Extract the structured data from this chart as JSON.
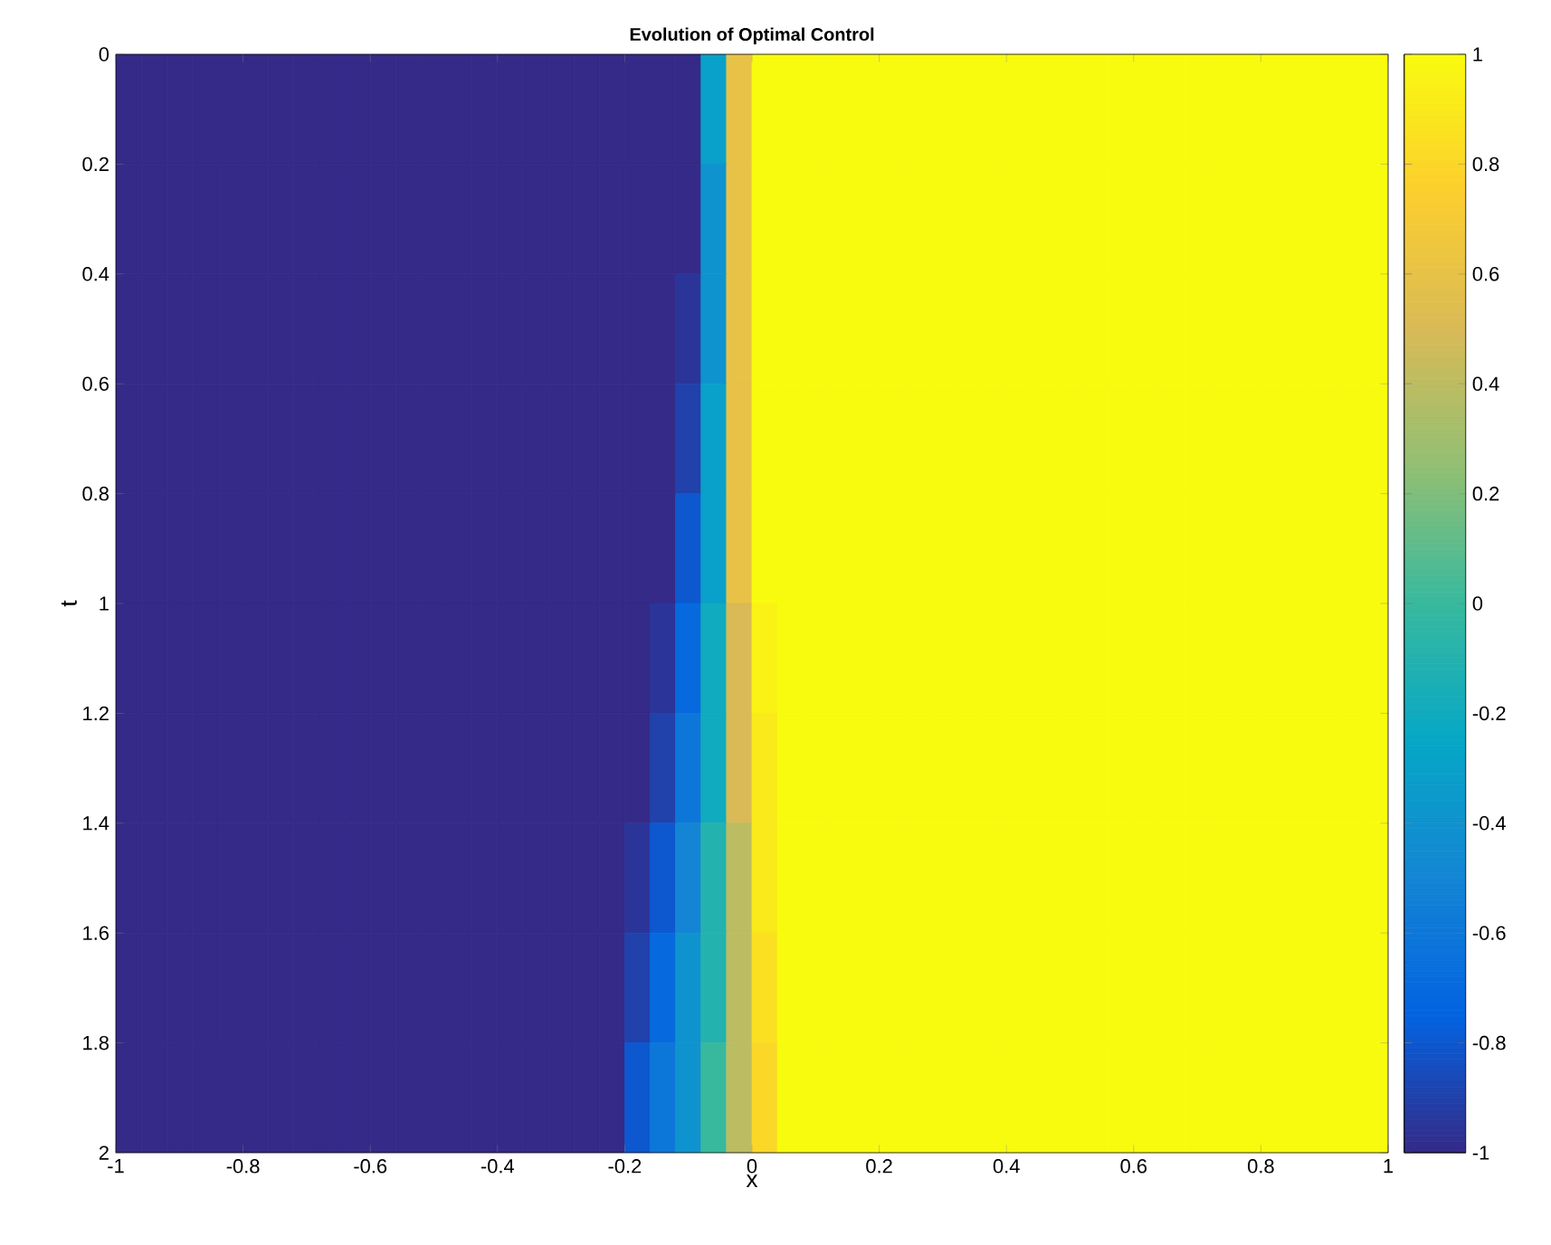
{
  "chart_data": {
    "type": "heatmap",
    "title": "Evolution of Optimal Control",
    "xlabel": "x",
    "ylabel": "t",
    "xlim": [
      -1,
      1
    ],
    "xticks": [
      -1,
      -0.8,
      -0.6,
      -0.4,
      -0.2,
      0,
      0.2,
      0.4,
      0.6,
      0.8,
      1
    ],
    "ylim": [
      2,
      0
    ],
    "yticks": [
      0,
      0.2,
      0.4,
      0.6,
      0.8,
      1,
      1.2,
      1.4,
      1.6,
      1.8,
      2
    ],
    "clim": [
      -1,
      1
    ],
    "cticks": [
      -1,
      -0.8,
      -0.6,
      -0.4,
      -0.2,
      0,
      0.2,
      0.4,
      0.6,
      0.8,
      1
    ],
    "cells": [
      [
        -1,
        -1,
        -1,
        -1,
        -1,
        -1,
        -1,
        -1,
        -1,
        -1,
        -1,
        -1,
        -1,
        -1,
        -1,
        -1,
        -1,
        -1,
        -1,
        -1,
        -1,
        -1,
        -1,
        -0.3,
        0.6,
        1,
        1,
        1,
        1,
        1,
        1,
        1,
        1,
        1,
        1,
        1,
        1,
        1,
        1,
        1,
        1,
        1,
        1,
        1,
        1,
        1,
        1,
        1,
        1,
        1
      ],
      [
        -1,
        -1,
        -1,
        -1,
        -1,
        -1,
        -1,
        -1,
        -1,
        -1,
        -1,
        -1,
        -1,
        -1,
        -1,
        -1,
        -1,
        -1,
        -1,
        -1,
        -1,
        -1,
        -1,
        -0.4,
        0.6,
        1,
        1,
        1,
        1,
        1,
        1,
        1,
        1,
        1,
        1,
        1,
        1,
        1,
        1,
        1,
        1,
        1,
        1,
        1,
        1,
        1,
        1,
        1,
        1,
        1
      ],
      [
        -1,
        -1,
        -1,
        -1,
        -1,
        -1,
        -1,
        -1,
        -1,
        -1,
        -1,
        -1,
        -1,
        -1,
        -1,
        -1,
        -1,
        -1,
        -1,
        -1,
        -1,
        -1,
        -0.95,
        -0.4,
        0.6,
        1,
        1,
        1,
        1,
        1,
        1,
        1,
        1,
        1,
        1,
        1,
        1,
        1,
        1,
        1,
        1,
        1,
        1,
        1,
        1,
        1,
        1,
        1,
        1,
        1
      ],
      [
        -1,
        -1,
        -1,
        -1,
        -1,
        -1,
        -1,
        -1,
        -1,
        -1,
        -1,
        -1,
        -1,
        -1,
        -1,
        -1,
        -1,
        -1,
        -1,
        -1,
        -1,
        -1,
        -0.9,
        -0.3,
        0.6,
        1,
        1,
        1,
        1,
        1,
        1,
        1,
        1,
        1,
        1,
        1,
        1,
        1,
        1,
        1,
        1,
        1,
        1,
        1,
        1,
        1,
        1,
        1,
        1,
        1
      ],
      [
        -1,
        -1,
        -1,
        -1,
        -1,
        -1,
        -1,
        -1,
        -1,
        -1,
        -1,
        -1,
        -1,
        -1,
        -1,
        -1,
        -1,
        -1,
        -1,
        -1,
        -1,
        -1,
        -0.8,
        -0.3,
        0.6,
        1,
        1,
        1,
        1,
        1,
        1,
        1,
        1,
        1,
        1,
        1,
        1,
        1,
        1,
        1,
        1,
        1,
        1,
        1,
        1,
        1,
        1,
        1,
        1,
        1
      ],
      [
        -1,
        -1,
        -1,
        -1,
        -1,
        -1,
        -1,
        -1,
        -1,
        -1,
        -1,
        -1,
        -1,
        -1,
        -1,
        -1,
        -1,
        -1,
        -1,
        -1,
        -1,
        -0.95,
        -0.7,
        -0.2,
        0.5,
        0.95,
        1,
        1,
        1,
        1,
        1,
        1,
        1,
        1,
        1,
        1,
        1,
        1,
        1,
        1,
        1,
        1,
        1,
        1,
        1,
        1,
        1,
        1,
        1,
        1
      ],
      [
        -1,
        -1,
        -1,
        -1,
        -1,
        -1,
        -1,
        -1,
        -1,
        -1,
        -1,
        -1,
        -1,
        -1,
        -1,
        -1,
        -1,
        -1,
        -1,
        -1,
        -1,
        -0.9,
        -0.6,
        -0.2,
        0.5,
        0.9,
        1,
        1,
        1,
        1,
        1,
        1,
        1,
        1,
        1,
        1,
        1,
        1,
        1,
        1,
        1,
        1,
        1,
        1,
        1,
        1,
        1,
        1,
        1,
        1
      ],
      [
        -1,
        -1,
        -1,
        -1,
        -1,
        -1,
        -1,
        -1,
        -1,
        -1,
        -1,
        -1,
        -1,
        -1,
        -1,
        -1,
        -1,
        -1,
        -1,
        -1,
        -0.95,
        -0.8,
        -0.5,
        -0.1,
        0.4,
        0.9,
        1,
        1,
        1,
        1,
        1,
        1,
        1,
        1,
        1,
        1,
        1,
        1,
        1,
        1,
        1,
        1,
        1,
        1,
        1,
        1,
        1,
        1,
        1,
        1
      ],
      [
        -1,
        -1,
        -1,
        -1,
        -1,
        -1,
        -1,
        -1,
        -1,
        -1,
        -1,
        -1,
        -1,
        -1,
        -1,
        -1,
        -1,
        -1,
        -1,
        -1,
        -0.9,
        -0.7,
        -0.4,
        -0.1,
        0.4,
        0.85,
        1,
        1,
        1,
        1,
        1,
        1,
        1,
        1,
        1,
        1,
        1,
        1,
        1,
        1,
        1,
        1,
        1,
        1,
        1,
        1,
        1,
        1,
        1,
        1
      ],
      [
        -1,
        -1,
        -1,
        -1,
        -1,
        -1,
        -1,
        -1,
        -1,
        -1,
        -1,
        -1,
        -1,
        -1,
        -1,
        -1,
        -1,
        -1,
        -1,
        -1,
        -0.8,
        -0.6,
        -0.4,
        0,
        0.4,
        0.8,
        1,
        1,
        1,
        1,
        1,
        1,
        1,
        1,
        1,
        1,
        1,
        1,
        1,
        1,
        1,
        1,
        1,
        1,
        1,
        1,
        1,
        1,
        1,
        1
      ]
    ]
  }
}
